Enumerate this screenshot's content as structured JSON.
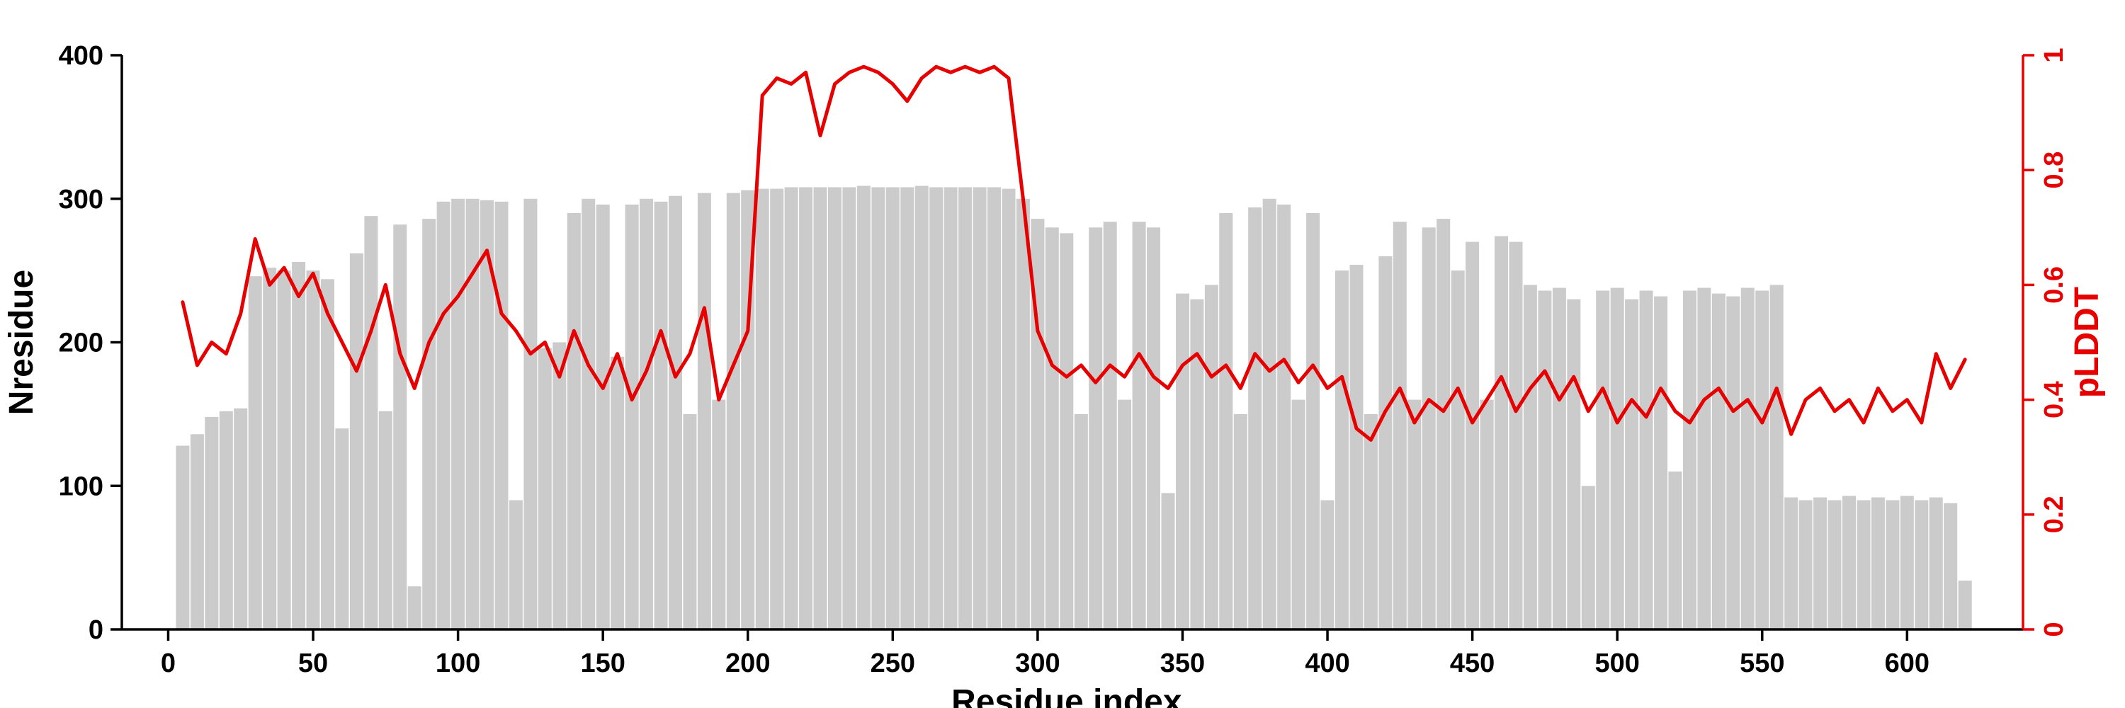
{
  "page": {
    "background": "#ffffff"
  },
  "chart_data": {
    "type": "combo",
    "title": "",
    "grid": false,
    "legend": "none",
    "x_axis": {
      "label": "Residue index",
      "ticks": [
        0,
        50,
        100,
        150,
        200,
        250,
        300,
        350,
        400,
        450,
        500,
        550,
        600
      ],
      "range": [
        -16,
        640
      ],
      "color": "#000000"
    },
    "y_left": {
      "label": "Nresidue",
      "ticks": [
        0,
        100,
        200,
        300,
        400
      ],
      "range": [
        0,
        400
      ],
      "color": "#000000"
    },
    "y_right": {
      "label": "pLDDT",
      "ticks": [
        0,
        0.2,
        0.4,
        0.6,
        0.8,
        1
      ],
      "range": [
        0,
        1
      ],
      "color": "#e60000"
    },
    "x": [
      5,
      10,
      15,
      20,
      25,
      30,
      35,
      40,
      45,
      50,
      55,
      60,
      65,
      70,
      75,
      80,
      85,
      90,
      95,
      100,
      105,
      110,
      115,
      120,
      125,
      130,
      135,
      140,
      145,
      150,
      155,
      160,
      165,
      170,
      175,
      180,
      185,
      190,
      195,
      200,
      205,
      210,
      215,
      220,
      225,
      230,
      235,
      240,
      245,
      250,
      255,
      260,
      265,
      270,
      275,
      280,
      285,
      290,
      295,
      300,
      305,
      310,
      315,
      320,
      325,
      330,
      335,
      340,
      345,
      350,
      355,
      360,
      365,
      370,
      375,
      380,
      385,
      390,
      395,
      400,
      405,
      410,
      415,
      420,
      425,
      430,
      435,
      440,
      445,
      450,
      455,
      460,
      465,
      470,
      475,
      480,
      485,
      490,
      495,
      500,
      505,
      510,
      515,
      520,
      525,
      530,
      535,
      540,
      545,
      550,
      555,
      560,
      565,
      570,
      575,
      580,
      585,
      590,
      595,
      600,
      605,
      610,
      615,
      620
    ],
    "series": [
      {
        "name": "Nresidue",
        "type": "bar",
        "axis": "left",
        "color": "#cbcbcb",
        "values": [
          128,
          136,
          148,
          152,
          154,
          246,
          252,
          250,
          256,
          250,
          244,
          140,
          262,
          288,
          152,
          282,
          30,
          286,
          298,
          300,
          300,
          299,
          298,
          90,
          300,
          196,
          200,
          290,
          300,
          296,
          190,
          296,
          300,
          298,
          302,
          150,
          304,
          160,
          304,
          306,
          307,
          307,
          308,
          308,
          308,
          308,
          308,
          309,
          308,
          308,
          308,
          309,
          308,
          308,
          308,
          308,
          308,
          307,
          300,
          286,
          280,
          276,
          150,
          280,
          284,
          160,
          284,
          280,
          95,
          234,
          230,
          240,
          290,
          150,
          294,
          300,
          296,
          160,
          290,
          90,
          250,
          254,
          150,
          260,
          284,
          160,
          280,
          286,
          250,
          270,
          160,
          274,
          270,
          240,
          236,
          238,
          230,
          100,
          236,
          238,
          230,
          236,
          232,
          110,
          236,
          238,
          234,
          232,
          238,
          236,
          240,
          92,
          90,
          92,
          90,
          93,
          90,
          92,
          90,
          93,
          90,
          92,
          88,
          34
        ]
      },
      {
        "name": "pLDDT",
        "type": "line",
        "axis": "right",
        "color": "#e60000",
        "values": [
          0.57,
          0.46,
          0.5,
          0.48,
          0.55,
          0.68,
          0.6,
          0.63,
          0.58,
          0.62,
          0.55,
          0.5,
          0.45,
          0.52,
          0.6,
          0.48,
          0.42,
          0.5,
          0.55,
          0.58,
          0.62,
          0.66,
          0.55,
          0.52,
          0.48,
          0.5,
          0.44,
          0.52,
          0.46,
          0.42,
          0.48,
          0.4,
          0.45,
          0.52,
          0.44,
          0.48,
          0.56,
          0.4,
          0.46,
          0.52,
          0.93,
          0.96,
          0.95,
          0.97,
          0.86,
          0.95,
          0.97,
          0.98,
          0.97,
          0.95,
          0.92,
          0.96,
          0.98,
          0.97,
          0.98,
          0.97,
          0.98,
          0.96,
          0.75,
          0.52,
          0.46,
          0.44,
          0.46,
          0.43,
          0.46,
          0.44,
          0.48,
          0.44,
          0.42,
          0.46,
          0.48,
          0.44,
          0.46,
          0.42,
          0.48,
          0.45,
          0.47,
          0.43,
          0.46,
          0.42,
          0.44,
          0.35,
          0.33,
          0.38,
          0.42,
          0.36,
          0.4,
          0.38,
          0.42,
          0.36,
          0.4,
          0.44,
          0.38,
          0.42,
          0.45,
          0.4,
          0.44,
          0.38,
          0.42,
          0.36,
          0.4,
          0.37,
          0.42,
          0.38,
          0.36,
          0.4,
          0.42,
          0.38,
          0.4,
          0.36,
          0.42,
          0.34,
          0.4,
          0.42,
          0.38,
          0.4,
          0.36,
          0.42,
          0.38,
          0.4,
          0.36,
          0.48,
          0.42,
          0.47
        ]
      }
    ]
  }
}
